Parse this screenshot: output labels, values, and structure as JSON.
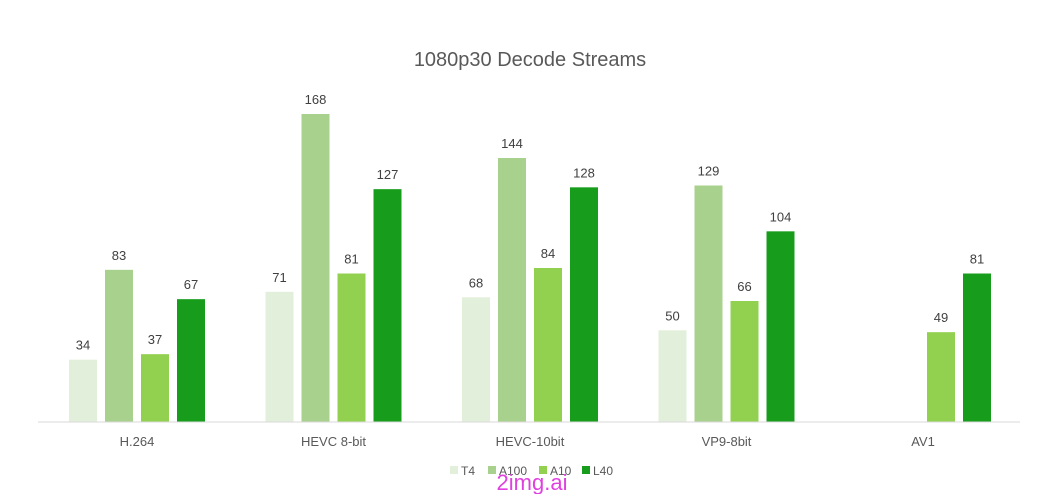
{
  "chart_data": {
    "type": "bar",
    "title": "1080p30 Decode Streams",
    "xlabel": "",
    "ylabel": "",
    "ylim": [
      0,
      180
    ],
    "grid": false,
    "legend_position": "bottom",
    "categories": [
      "H.264",
      "HEVC 8-bit",
      "HEVC-10bit",
      "VP9-8bit",
      "AV1"
    ],
    "series": [
      {
        "name": "T4",
        "color": "#e2efda",
        "values": [
          34,
          71,
          68,
          50,
          null
        ]
      },
      {
        "name": "A100",
        "color": "#a9d18e",
        "values": [
          83,
          168,
          144,
          129,
          null
        ]
      },
      {
        "name": "A10",
        "color": "#92d050",
        "values": [
          37,
          81,
          84,
          66,
          49
        ]
      },
      {
        "name": "L40",
        "color": "#179c1b",
        "values": [
          67,
          127,
          128,
          104,
          81
        ]
      }
    ]
  },
  "watermark": "2img.ai"
}
